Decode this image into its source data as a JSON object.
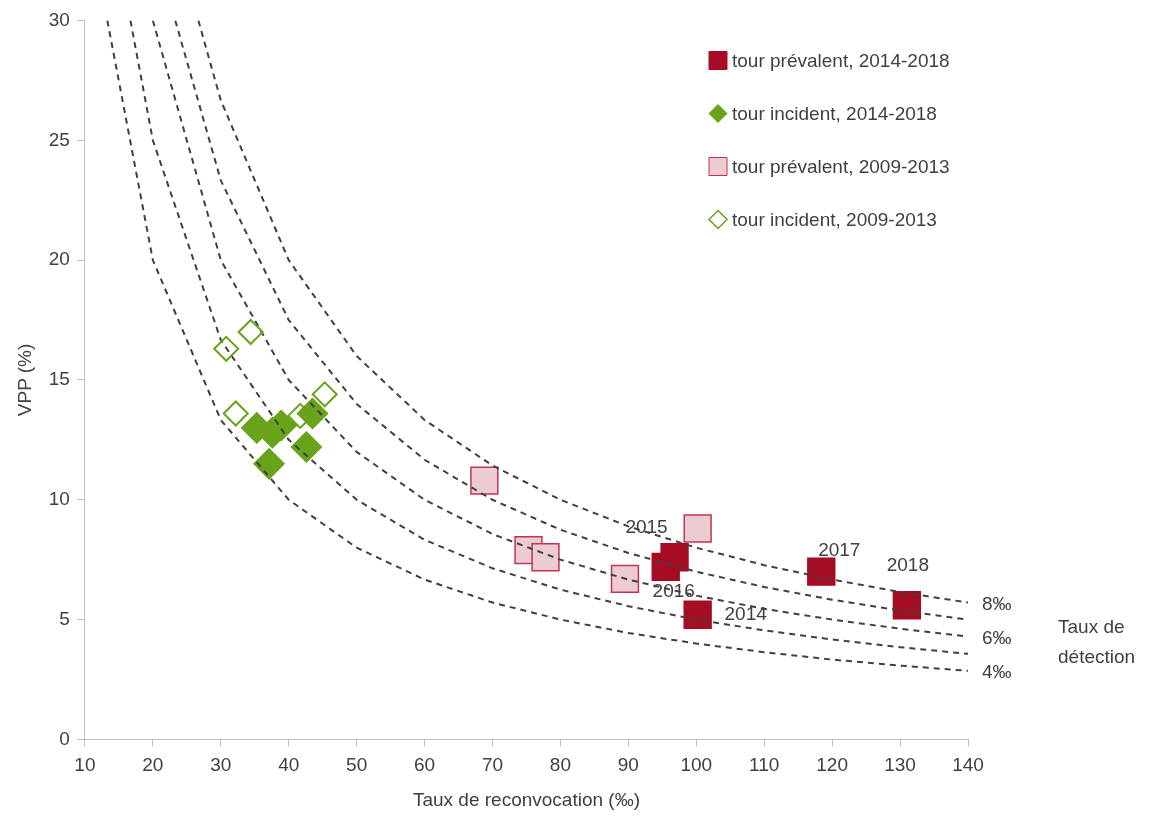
{
  "chart_data": {
    "type": "scatter",
    "xlabel": "Taux de reconvocation (‰)",
    "ylabel": "VPP (%)",
    "xlim": [
      10,
      140
    ],
    "xticks": [
      10,
      20,
      30,
      40,
      50,
      60,
      70,
      80,
      90,
      100,
      110,
      120,
      130,
      140
    ],
    "ylim": [
      0,
      30
    ],
    "yticks": [
      0,
      5,
      10,
      15,
      20,
      25,
      30
    ],
    "grid": false,
    "legend": "top right",
    "series": [
      {
        "type": "line",
        "name": "4‰",
        "color": "#404040",
        "line_style": "dashed",
        "marker": "none",
        "x": [
          13.3,
          20,
          30,
          40,
          50,
          60,
          70,
          80,
          90,
          100,
          110,
          120,
          130,
          140
        ],
        "values": [
          30,
          20,
          13.33,
          10,
          8,
          6.67,
          5.71,
          5,
          4.44,
          4,
          3.64,
          3.33,
          3.08,
          2.86
        ]
      },
      {
        "type": "line",
        "color": "#404040",
        "line_style": "dashed",
        "marker": "none",
        "x": [
          16.7,
          20,
          30,
          40,
          50,
          60,
          70,
          80,
          90,
          100,
          110,
          120,
          130,
          140
        ],
        "values": [
          30,
          25,
          16.67,
          12.5,
          10,
          8.33,
          7.14,
          6.25,
          5.56,
          5,
          4.55,
          4.17,
          3.85,
          3.57
        ]
      },
      {
        "type": "line",
        "name": "6‰",
        "color": "#404040",
        "line_style": "dashed",
        "marker": "none",
        "x": [
          20,
          30,
          40,
          50,
          60,
          70,
          80,
          90,
          100,
          110,
          120,
          130,
          140
        ],
        "values": [
          30,
          20,
          15,
          12,
          10,
          8.57,
          7.5,
          6.67,
          6,
          5.45,
          5,
          4.62,
          4.29
        ]
      },
      {
        "type": "line",
        "color": "#404040",
        "line_style": "dashed",
        "marker": "none",
        "x": [
          23.3,
          30,
          40,
          50,
          60,
          70,
          80,
          90,
          100,
          110,
          120,
          130,
          140
        ],
        "values": [
          30,
          23.33,
          17.5,
          14,
          11.67,
          10,
          8.75,
          7.78,
          7,
          6.36,
          5.83,
          5.38,
          5
        ]
      },
      {
        "type": "line",
        "name": "8‰",
        "color": "#404040",
        "line_style": "dashed",
        "marker": "none",
        "x": [
          26.7,
          30,
          40,
          50,
          60,
          70,
          80,
          90,
          100,
          110,
          120,
          130,
          140
        ],
        "values": [
          30,
          26.67,
          20,
          16,
          13.33,
          11.43,
          10,
          8.89,
          8,
          7.27,
          6.67,
          6.15,
          5.71
        ]
      },
      {
        "name": "tour prévalent, 2009-2013",
        "color": "#eccbd2",
        "marker": "square",
        "x": [
          68.8,
          75.3,
          77.8,
          89.5,
          100.2
        ],
        "values": [
          10.8,
          7.9,
          7.6,
          6.7,
          8.8
        ]
      },
      {
        "name": "tour incident, 2009-2013",
        "color": "#68a31a",
        "marker": "diamond-open",
        "x": [
          30.8,
          34.4,
          32.2,
          45.3,
          41.7
        ],
        "values": [
          16.3,
          17.0,
          13.6,
          14.4,
          13.5
        ]
      },
      {
        "name": "tour prévalent, 2014-2018",
        "color": "#a50d25",
        "marker": "square",
        "x": [
          100.2,
          96.8,
          95.5,
          118.4,
          131.0
        ],
        "values": [
          5.2,
          7.6,
          7.2,
          7.0,
          5.6
        ]
      },
      {
        "name": "tour incident, 2014-2018",
        "color": "#68a31a",
        "marker": "diamond",
        "x": [
          35.3,
          37.1,
          37.6,
          38.9,
          42.6,
          43.5
        ],
        "values": [
          13.0,
          11.5,
          12.8,
          13.1,
          12.2,
          13.6
        ]
      }
    ],
    "annotations": [
      {
        "text": "2014",
        "x": 100.2,
        "y": 5.2
      },
      {
        "text": "2015",
        "x": 96.8,
        "y": 7.6
      },
      {
        "text": "2016",
        "x": 95.5,
        "y": 7.2
      },
      {
        "text": "2017",
        "x": 118.4,
        "y": 7.0
      },
      {
        "text": "2018",
        "x": 131.0,
        "y": 5.6
      },
      "Taux de détection"
    ]
  }
}
